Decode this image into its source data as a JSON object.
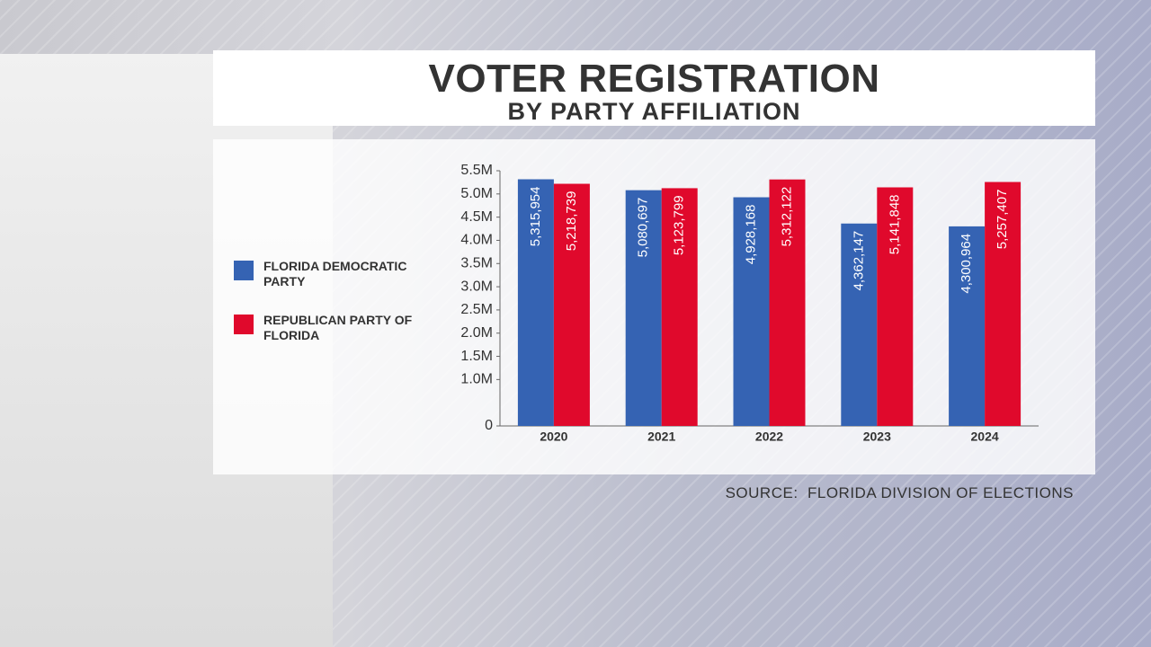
{
  "chart_data": {
    "type": "bar",
    "title": "VOTER REGISTRATION",
    "subtitle": "BY PARTY AFFILIATION",
    "source": "SOURCE:  FLORIDA DIVISION OF ELECTIONS",
    "categories": [
      "2020",
      "2021",
      "2022",
      "2023",
      "2024"
    ],
    "series": [
      {
        "name": "FLORIDA DEMOCRATIC PARTY",
        "color": "#3563b3",
        "values": [
          5315954,
          5080697,
          4928168,
          4362147,
          4300964
        ],
        "value_labels": [
          "5,315,954",
          "5,080,697",
          "4,928,168",
          "4,362,147",
          "4,300,964"
        ]
      },
      {
        "name": "REPUBLICAN PARTY OF FLORIDA",
        "color": "#e0092c",
        "values": [
          5218739,
          5123799,
          5312122,
          5141848,
          5257407
        ],
        "value_labels": [
          "5,218,739",
          "5,123,799",
          "5,312,122",
          "5,141,848",
          "5,257,407"
        ]
      }
    ],
    "ylim": [
      0,
      5500000
    ],
    "yticks": [
      0,
      {
        "value": 1000000,
        "label": "1.0M"
      },
      {
        "value": 1500000,
        "label": "1.5M"
      },
      {
        "value": 2000000,
        "label": "2.0M"
      },
      {
        "value": 2500000,
        "label": "2.5M"
      },
      {
        "value": 3000000,
        "label": "3.0M"
      },
      {
        "value": 3500000,
        "label": "3.5M"
      },
      {
        "value": 4000000,
        "label": "4.0M"
      },
      {
        "value": 4500000,
        "label": "4.5M"
      },
      {
        "value": 5000000,
        "label": "5.0M"
      },
      {
        "value": 5500000,
        "label": "5.5M"
      }
    ]
  }
}
